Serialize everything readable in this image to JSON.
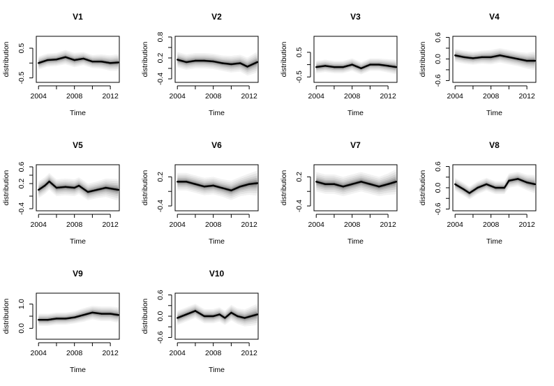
{
  "chart_data": [
    {
      "type": "line",
      "title": "V1",
      "xlabel": "Time",
      "ylabel": "distribution",
      "xlim": [
        2003.75,
        2013.0
      ],
      "ylim": [
        -0.65,
        0.9
      ],
      "xticks": [
        2004,
        2008,
        2012
      ],
      "yticks": [
        -0.5,
        0.5
      ],
      "x": [
        2004,
        2005,
        2006,
        2007,
        2008,
        2009,
        2010,
        2011,
        2012,
        2012.9
      ],
      "y": [
        0.0,
        0.1,
        0.12,
        0.2,
        0.1,
        0.15,
        0.05,
        0.05,
        0.0,
        0.02
      ],
      "band": [
        0.22,
        0.22,
        0.22,
        0.24,
        0.24,
        0.22,
        0.22,
        0.24,
        0.26,
        0.28
      ]
    },
    {
      "type": "line",
      "title": "V2",
      "xlabel": "Time",
      "ylabel": "distribution",
      "xlim": [
        2003.75,
        2013.0
      ],
      "ylim": [
        -0.5,
        0.82
      ],
      "xticks": [
        2004,
        2008,
        2012
      ],
      "yticks": [
        -0.4,
        0.2,
        0.8
      ],
      "x": [
        2004,
        2005,
        2006,
        2007,
        2008,
        2009,
        2010,
        2011,
        2011.8,
        2012.9
      ],
      "y": [
        0.15,
        0.08,
        0.12,
        0.12,
        0.1,
        0.05,
        0.02,
        0.05,
        -0.05,
        0.08
      ],
      "band": [
        0.22,
        0.22,
        0.22,
        0.22,
        0.22,
        0.22,
        0.24,
        0.24,
        0.26,
        0.3
      ]
    },
    {
      "type": "line",
      "title": "V3",
      "xlabel": "Time",
      "ylabel": "distribution",
      "xlim": [
        2003.75,
        2013.0
      ],
      "ylim": [
        -0.72,
        1.15
      ],
      "xticks": [
        2004,
        2008,
        2012
      ],
      "yticks": [
        -0.5,
        0.5
      ],
      "x": [
        2004,
        2005,
        2006,
        2007,
        2008,
        2009,
        2010,
        2011,
        2012,
        2012.9
      ],
      "y": [
        -0.1,
        -0.05,
        -0.1,
        -0.1,
        0.0,
        -0.15,
        0.0,
        0.0,
        -0.05,
        -0.1
      ],
      "band": [
        0.25,
        0.25,
        0.25,
        0.25,
        0.25,
        0.25,
        0.25,
        0.25,
        0.27,
        0.3
      ]
    },
    {
      "type": "line",
      "title": "V4",
      "xlabel": "Time",
      "ylabel": "distribution",
      "xlim": [
        2003.75,
        2013.0
      ],
      "ylim": [
        -0.65,
        0.63
      ],
      "xticks": [
        2004,
        2008,
        2012
      ],
      "yticks": [
        -0.6,
        0.0,
        0.6
      ],
      "x": [
        2004,
        2005,
        2006,
        2007,
        2008,
        2009,
        2010,
        2011,
        2012,
        2012.9
      ],
      "y": [
        0.1,
        0.05,
        0.02,
        0.05,
        0.05,
        0.1,
        0.05,
        0.0,
        -0.05,
        -0.05
      ],
      "band": [
        0.18,
        0.18,
        0.18,
        0.18,
        0.2,
        0.2,
        0.2,
        0.2,
        0.22,
        0.26
      ]
    },
    {
      "type": "line",
      "title": "V5",
      "xlabel": "Time",
      "ylabel": "distribution",
      "xlim": [
        2003.75,
        2013.0
      ],
      "ylim": [
        -0.45,
        0.65
      ],
      "xticks": [
        2004,
        2008,
        2012
      ],
      "yticks": [
        -0.4,
        0.2,
        0.6
      ],
      "x": [
        2004,
        2004.7,
        2005.2,
        2006,
        2007,
        2008,
        2008.5,
        2009.5,
        2010.5,
        2011.5,
        2012.9
      ],
      "y": [
        0.05,
        0.15,
        0.25,
        0.1,
        0.12,
        0.1,
        0.15,
        0.0,
        0.05,
        0.1,
        0.05
      ],
      "band": [
        0.2,
        0.2,
        0.2,
        0.2,
        0.2,
        0.2,
        0.2,
        0.2,
        0.2,
        0.22,
        0.26
      ]
    },
    {
      "type": "line",
      "title": "V6",
      "xlabel": "Time",
      "ylabel": "distribution",
      "xlim": [
        2003.75,
        2013.0
      ],
      "ylim": [
        -0.5,
        0.45
      ],
      "xticks": [
        2004,
        2008,
        2012
      ],
      "yticks": [
        -0.4,
        0.2
      ],
      "x": [
        2004,
        2005,
        2006,
        2007,
        2008,
        2009,
        2010,
        2011,
        2012,
        2012.9
      ],
      "y": [
        0.1,
        0.1,
        0.05,
        0.0,
        0.02,
        -0.03,
        -0.08,
        0.0,
        0.05,
        0.07
      ],
      "band": [
        0.18,
        0.18,
        0.18,
        0.18,
        0.18,
        0.18,
        0.2,
        0.2,
        0.22,
        0.26
      ]
    },
    {
      "type": "line",
      "title": "V7",
      "xlabel": "Time",
      "ylabel": "distribution",
      "xlim": [
        2003.75,
        2013.0
      ],
      "ylim": [
        -0.5,
        0.45
      ],
      "xticks": [
        2004,
        2008,
        2012
      ],
      "yticks": [
        -0.4,
        0.2
      ],
      "x": [
        2004,
        2005,
        2006,
        2007,
        2008,
        2009,
        2010,
        2011,
        2012,
        2012.9
      ],
      "y": [
        0.1,
        0.05,
        0.05,
        0.0,
        0.05,
        0.1,
        0.05,
        0.0,
        0.05,
        0.1
      ],
      "band": [
        0.2,
        0.2,
        0.2,
        0.2,
        0.2,
        0.2,
        0.2,
        0.2,
        0.22,
        0.26
      ]
    },
    {
      "type": "line",
      "title": "V8",
      "xlabel": "Time",
      "ylabel": "distribution",
      "xlim": [
        2003.75,
        2013.0
      ],
      "ylim": [
        -0.65,
        0.65
      ],
      "xticks": [
        2004,
        2008,
        2012
      ],
      "yticks": [
        -0.6,
        0.0,
        0.6
      ],
      "x": [
        2004,
        2005,
        2005.6,
        2006.5,
        2007.5,
        2008.5,
        2009.5,
        2010,
        2011,
        2012,
        2012.9
      ],
      "y": [
        0.1,
        -0.05,
        -0.15,
        0.0,
        0.1,
        0.0,
        0.0,
        0.2,
        0.25,
        0.15,
        0.1
      ],
      "band": [
        0.18,
        0.18,
        0.18,
        0.18,
        0.18,
        0.18,
        0.18,
        0.2,
        0.2,
        0.22,
        0.26
      ]
    },
    {
      "type": "line",
      "title": "V9",
      "xlabel": "Time",
      "ylabel": "distribution",
      "xlim": [
        2003.75,
        2013.0
      ],
      "ylim": [
        -0.45,
        1.45
      ],
      "xticks": [
        2004,
        2008,
        2012
      ],
      "yticks": [
        0.0,
        1.0
      ],
      "x": [
        2004,
        2005,
        2006,
        2007,
        2008,
        2009,
        2010,
        2011,
        2012,
        2012.9
      ],
      "y": [
        0.35,
        0.35,
        0.4,
        0.4,
        0.45,
        0.55,
        0.65,
        0.6,
        0.6,
        0.55
      ],
      "band": [
        0.25,
        0.25,
        0.25,
        0.25,
        0.25,
        0.28,
        0.28,
        0.3,
        0.3,
        0.32
      ]
    },
    {
      "type": "line",
      "title": "V10",
      "xlabel": "Time",
      "ylabel": "distribution",
      "xlim": [
        2003.75,
        2013.0
      ],
      "ylim": [
        -0.65,
        0.65
      ],
      "xticks": [
        2004,
        2008,
        2012
      ],
      "yticks": [
        -0.6,
        0.0,
        0.6
      ],
      "x": [
        2004,
        2005,
        2006,
        2007,
        2008,
        2008.7,
        2009.3,
        2010,
        2010.7,
        2011.5,
        2012.9
      ],
      "y": [
        -0.05,
        0.05,
        0.15,
        0.0,
        0.0,
        0.05,
        -0.05,
        0.1,
        0.0,
        -0.05,
        0.05
      ],
      "band": [
        0.2,
        0.2,
        0.2,
        0.2,
        0.2,
        0.2,
        0.2,
        0.22,
        0.22,
        0.24,
        0.3
      ]
    }
  ],
  "colors": {
    "line": "#000000",
    "band": "#000000",
    "frame": "#000000"
  }
}
